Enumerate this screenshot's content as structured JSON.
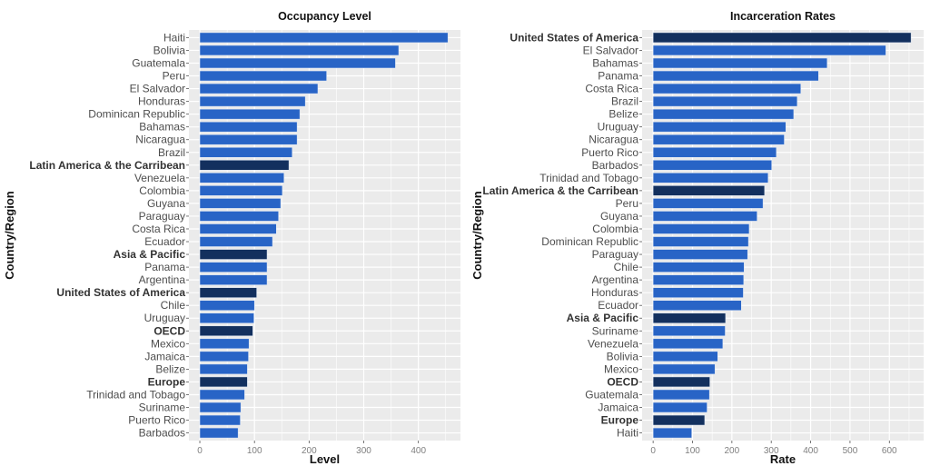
{
  "colors": {
    "panel": "#ebebeb",
    "grid": "#ffffff",
    "bar": "#2864c6",
    "highlight": "#13305e"
  },
  "chart_data": [
    {
      "type": "bar",
      "orientation": "horizontal",
      "title": "Occupancy Level",
      "xlabel": "Level",
      "ylabel": "Country/Region",
      "xlim": [
        -20,
        477
      ],
      "xticks": [
        0,
        100,
        200,
        300,
        400
      ],
      "grid": true,
      "categories": [
        "Haiti",
        "Bolivia",
        "Guatemala",
        "Peru",
        "El Salvador",
        "Honduras",
        "Dominican Republic",
        "Bahamas",
        "Nicaragua",
        "Brazil",
        "Latin America & the Carribean",
        "Venezuela",
        "Colombia",
        "Guyana",
        "Paraguay",
        "Costa Rica",
        "Ecuador",
        "Asia & Pacific",
        "Panama",
        "Argentina",
        "United States of America",
        "Chile",
        "Uruguay",
        "OECD",
        "Mexico",
        "Jamaica",
        "Belize",
        "Europe",
        "Trinidad and Tobago",
        "Suriname",
        "Puerto Rico",
        "Barbados"
      ],
      "values": [
        454,
        364,
        358,
        232,
        216,
        193,
        183,
        178,
        178,
        169,
        163,
        154,
        151,
        148,
        144,
        140,
        133,
        123,
        123,
        123,
        104,
        100,
        99,
        97,
        90,
        89,
        87,
        87,
        82,
        75,
        74,
        70
      ],
      "highlighted": [
        "Latin America & the Carribean",
        "Asia & Pacific",
        "United States of America",
        "OECD",
        "Europe"
      ]
    },
    {
      "type": "bar",
      "orientation": "horizontal",
      "title": "Incarceration Rates",
      "xlabel": "Rate",
      "ylabel": "Country/Region",
      "xlim": [
        -28,
        687
      ],
      "xticks": [
        0,
        100,
        200,
        300,
        400,
        500,
        600
      ],
      "grid": true,
      "categories": [
        "United States of America",
        "El Salvador",
        "Bahamas",
        "Panama",
        "Costa Rica",
        "Brazil",
        "Belize",
        "Uruguay",
        "Nicaragua",
        "Puerto Rico",
        "Barbados",
        "Trinidad and Tobago",
        "Latin America & the Carribean",
        "Peru",
        "Guyana",
        "Colombia",
        "Dominican Republic",
        "Paraguay",
        "Chile",
        "Argentina",
        "Honduras",
        "Ecuador",
        "Asia & Pacific",
        "Suriname",
        "Venezuela",
        "Bolivia",
        "Mexico",
        "OECD",
        "Guatemala",
        "Jamaica",
        "Europe",
        "Haiti"
      ],
      "values": [
        655,
        591,
        442,
        420,
        375,
        366,
        357,
        337,
        333,
        313,
        301,
        292,
        283,
        279,
        264,
        244,
        242,
        240,
        231,
        230,
        229,
        224,
        184,
        183,
        177,
        164,
        157,
        144,
        143,
        137,
        131,
        98
      ],
      "highlighted": [
        "United States of America",
        "Latin America & the Carribean",
        "Asia & Pacific",
        "OECD",
        "Europe"
      ]
    }
  ]
}
